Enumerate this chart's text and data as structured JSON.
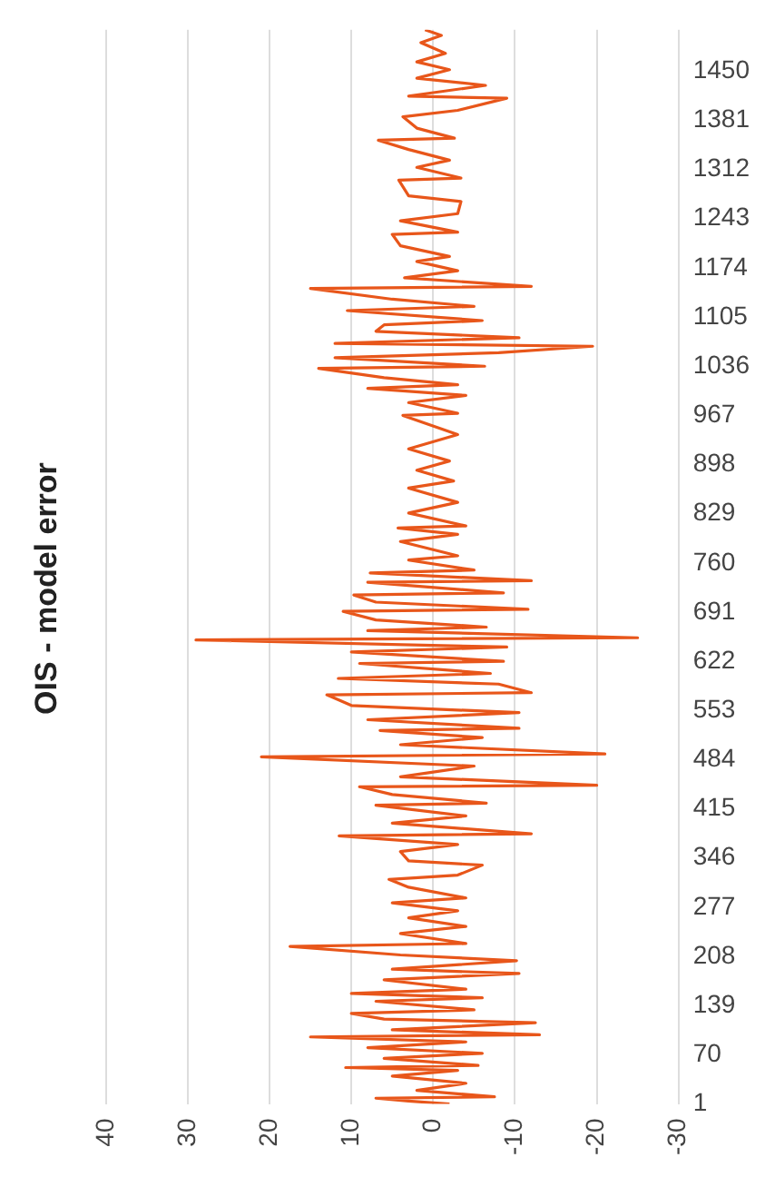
{
  "chart_data": {
    "type": "line",
    "title": "OIS - model error",
    "x": [
      -2,
      3,
      7,
      -7.5,
      2,
      -4,
      5,
      -3,
      10.7,
      -5.5,
      6,
      -6,
      8,
      -4,
      15,
      -13,
      5,
      -12.5,
      6,
      10,
      -5,
      7,
      -6,
      10,
      -4,
      6,
      -10.5,
      5,
      -10.2,
      4,
      17.5,
      -4,
      4,
      -4,
      3,
      -3,
      5,
      -4,
      3,
      5.4,
      -3,
      -6,
      3,
      4,
      -3,
      11.5,
      -12,
      5,
      -4,
      7,
      -6.5,
      5,
      9,
      -20,
      4,
      -5,
      21,
      -21,
      4,
      -6,
      6.5,
      -10.5,
      8,
      -10.5,
      10,
      13,
      -12,
      -8,
      11.6,
      -7,
      9,
      -8.6,
      10,
      -9,
      29,
      -25,
      8,
      -6.5,
      7,
      11,
      -11.6,
      7,
      9.7,
      -8.6,
      8,
      -12,
      7.7,
      -5,
      3,
      -3,
      4,
      -3,
      4.3,
      -4,
      3,
      -3,
      3,
      -2.5,
      2,
      -2,
      3,
      -3,
      3.7,
      -3,
      3,
      -4,
      8,
      -3,
      6,
      14,
      -6.3,
      12,
      -8,
      -19.5,
      12,
      -10.5,
      7,
      6,
      -6,
      10.5,
      -5,
      5,
      15,
      -12,
      3.5,
      -3,
      2,
      -2,
      4,
      5,
      -3,
      4,
      -3,
      -3.4,
      3,
      4.2,
      -3.4,
      2,
      -2,
      3,
      6.7,
      -2.6,
      2,
      3.7,
      -3,
      -9,
      3,
      -6.4,
      2,
      -2,
      2,
      -1.5,
      1.5,
      -1,
      1
    ],
    "series": [
      {
        "color": "#e8561a",
        "values": [
          1,
          5,
          9,
          11,
          20,
          30,
          40,
          48,
          52,
          55,
          65,
          72,
          80,
          88,
          95,
          98,
          105,
          115,
          120,
          128,
          133,
          145,
          150,
          156,
          162,
          175,
          184,
          190,
          202,
          210,
          222,
          226,
          240,
          250,
          262,
          272,
          283,
          290,
          305,
          316,
          322,
          336,
          342,
          355,
          365,
          377,
          380,
          395,
          405,
          420,
          423,
          435,
          446,
          448,
          460,
          475,
          488,
          492,
          505,
          515,
          525,
          528,
          540,
          550,
          560,
          575,
          578,
          590,
          598,
          605,
          619,
          622,
          635,
          642,
          652,
          655,
          665,
          670,
          680,
          692,
          695,
          705,
          715,
          718,
          733,
          735,
          746,
          750,
          764,
          770,
          790,
          800,
          809,
          812,
          830,
          845,
          865,
          875,
          890,
          903,
          920,
          940,
          967,
          970,
          985,
          995,
          1005,
          1010,
          1020,
          1033,
          1036,
          1048,
          1055,
          1064,
          1068,
          1076,
          1085,
          1094,
          1100,
          1114,
          1120,
          1130,
          1145,
          1148,
          1160,
          1170,
          1183,
          1190,
          1205,
          1221,
          1224,
          1240,
          1250,
          1267,
          1275,
          1297,
          1300,
          1315,
          1325,
          1340,
          1353,
          1356,
          1370,
          1386,
          1395,
          1412,
          1415,
          1430,
          1440,
          1452,
          1463,
          1475,
          1490,
          1500,
          1508
        ]
      }
    ],
    "xlim": [
      40,
      -30
    ],
    "xticks": [
      -30,
      -20,
      -10,
      0,
      10,
      20,
      30,
      40
    ],
    "ylim": [
      1,
      1508
    ],
    "yticks": [
      1,
      70,
      139,
      208,
      277,
      346,
      415,
      484,
      553,
      622,
      691,
      760,
      829,
      898,
      967,
      1036,
      1105,
      1174,
      1243,
      1312,
      1381,
      1450
    ],
    "grid": "x",
    "marker": "none",
    "line_style": "solid"
  }
}
